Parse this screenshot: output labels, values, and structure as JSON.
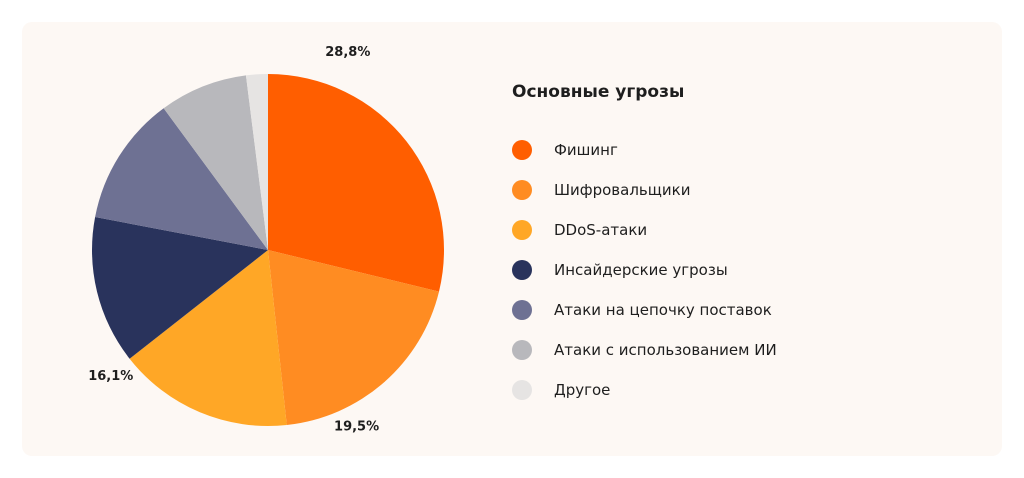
{
  "chart_data": {
    "type": "pie",
    "title": "Основные угрозы",
    "legend_position": "right",
    "series": [
      {
        "name": "Фишинг",
        "value": 28.8,
        "color": "#ff5e00",
        "label": "28,8%"
      },
      {
        "name": "Шифровальщики",
        "value": 19.5,
        "color": "#ff8c22",
        "label": "19,5%"
      },
      {
        "name": "DDoS-атаки",
        "value": 16.1,
        "color": "#ffa726",
        "label": "16,1%"
      },
      {
        "name": "Инсайдерские угрозы",
        "value": 13.6,
        "color": "#29335c"
      },
      {
        "name": "Атаки на цепочку поставок",
        "value": 11.9,
        "color": "#6e7193"
      },
      {
        "name": "Атаки с использованием ИИ",
        "value": 8.1,
        "color": "#b8b8bc"
      },
      {
        "name": "Другое",
        "value": 2.0,
        "color": "#e6e4e3"
      }
    ]
  }
}
